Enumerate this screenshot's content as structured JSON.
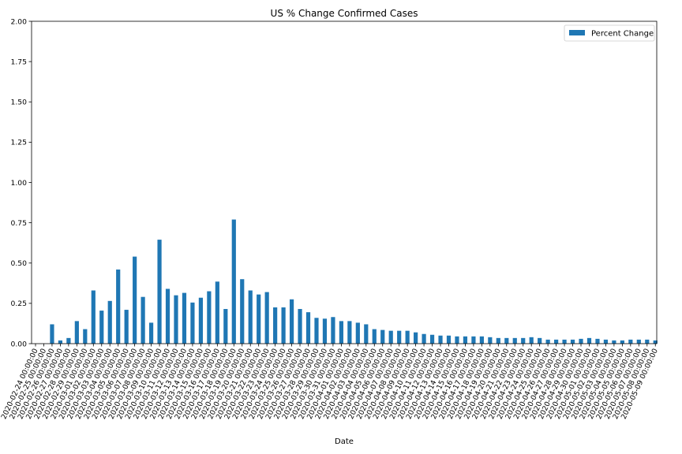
{
  "chart_data": {
    "type": "bar",
    "title": "US % Change Confirmed Cases",
    "xlabel": "Date",
    "ylabel": "",
    "ylim": [
      0,
      2.0
    ],
    "yticks": [
      0.0,
      0.25,
      0.5,
      0.75,
      1.0,
      1.25,
      1.5,
      1.75,
      2.0
    ],
    "ytick_labels": [
      "0.00",
      "0.25",
      "0.50",
      "0.75",
      "1.00",
      "1.25",
      "1.50",
      "1.75",
      "2.00"
    ],
    "legend": {
      "position": "top-right",
      "entries": [
        "Percent Change"
      ]
    },
    "grid": false,
    "bar_color": "#1f77b4",
    "categories": [
      "2020-02-24 00:00:00",
      "2020-02-25 00:00:00",
      "2020-02-26 00:00:00",
      "2020-02-27 00:00:00",
      "2020-02-28 00:00:00",
      "2020-02-29 00:00:00",
      "2020-03-01 00:00:00",
      "2020-03-02 00:00:00",
      "2020-03-03 00:00:00",
      "2020-03-04 00:00:00",
      "2020-03-05 00:00:00",
      "2020-03-06 00:00:00",
      "2020-03-07 00:00:00",
      "2020-03-08 00:00:00",
      "2020-03-09 00:00:00",
      "2020-03-10 00:00:00",
      "2020-03-11 00:00:00",
      "2020-03-12 00:00:00",
      "2020-03-13 00:00:00",
      "2020-03-14 00:00:00",
      "2020-03-15 00:00:00",
      "2020-03-16 00:00:00",
      "2020-03-17 00:00:00",
      "2020-03-18 00:00:00",
      "2020-03-19 00:00:00",
      "2020-03-20 00:00:00",
      "2020-03-21 00:00:00",
      "2020-03-22 00:00:00",
      "2020-03-23 00:00:00",
      "2020-03-24 00:00:00",
      "2020-03-25 00:00:00",
      "2020-03-26 00:00:00",
      "2020-03-27 00:00:00",
      "2020-03-28 00:00:00",
      "2020-03-29 00:00:00",
      "2020-03-30 00:00:00",
      "2020-03-31 00:00:00",
      "2020-04-01 00:00:00",
      "2020-04-02 00:00:00",
      "2020-04-03 00:00:00",
      "2020-04-04 00:00:00",
      "2020-04-05 00:00:00",
      "2020-04-06 00:00:00",
      "2020-04-07 00:00:00",
      "2020-04-08 00:00:00",
      "2020-04-09 00:00:00",
      "2020-04-10 00:00:00",
      "2020-04-11 00:00:00",
      "2020-04-12 00:00:00",
      "2020-04-13 00:00:00",
      "2020-04-14 00:00:00",
      "2020-04-15 00:00:00",
      "2020-04-16 00:00:00",
      "2020-04-17 00:00:00",
      "2020-04-18 00:00:00",
      "2020-04-19 00:00:00",
      "2020-04-20 00:00:00",
      "2020-04-21 00:00:00",
      "2020-04-22 00:00:00",
      "2020-04-23 00:00:00",
      "2020-04-24 00:00:00",
      "2020-04-25 00:00:00",
      "2020-04-26 00:00:00",
      "2020-04-27 00:00:00",
      "2020-04-28 00:00:00",
      "2020-04-29 00:00:00",
      "2020-04-30 00:00:00",
      "2020-05-01 00:00:00",
      "2020-05-02 00:00:00",
      "2020-05-03 00:00:00",
      "2020-05-04 00:00:00",
      "2020-05-05 00:00:00",
      "2020-05-06 00:00:00",
      "2020-05-07 00:00:00",
      "2020-05-08 00:00:00",
      "2020-05-09 00:00:00"
    ],
    "series": [
      {
        "name": "Percent Change",
        "values": [
          0.0,
          0.0,
          0.12,
          0.02,
          0.035,
          0.14,
          0.09,
          0.33,
          0.205,
          0.265,
          0.46,
          0.21,
          0.54,
          0.29,
          0.13,
          0.645,
          0.34,
          0.3,
          0.315,
          0.255,
          0.285,
          0.325,
          0.385,
          0.215,
          0.77,
          0.4,
          0.33,
          0.305,
          0.32,
          0.225,
          0.225,
          0.275,
          0.215,
          0.195,
          0.16,
          0.155,
          0.165,
          0.14,
          0.14,
          0.13,
          0.12,
          0.09,
          0.085,
          0.08,
          0.08,
          0.08,
          0.07,
          0.06,
          0.055,
          0.05,
          0.05,
          0.045,
          0.045,
          0.045,
          0.045,
          0.04,
          0.035,
          0.035,
          0.035,
          0.035,
          0.04,
          0.035,
          0.025,
          0.025,
          0.025,
          0.025,
          0.03,
          0.035,
          0.03,
          0.025,
          0.02,
          0.02,
          0.025,
          0.025,
          0.025,
          0.02
        ]
      }
    ]
  }
}
